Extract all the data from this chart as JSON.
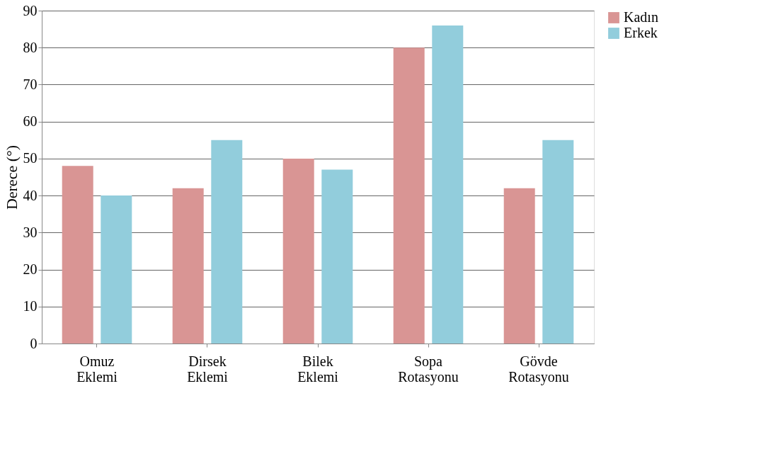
{
  "chart_data": {
    "type": "bar",
    "ylabel": "Derece (°)",
    "categories": [
      "Omuz Eklemi",
      "Dirsek Eklemi",
      "Bilek Eklemi",
      "Sopa Rotasyonu",
      "Gövde Rotasyonu"
    ],
    "series": [
      {
        "name": "Kadın",
        "color": "#d99594",
        "values": [
          48,
          42,
          50,
          80,
          42
        ]
      },
      {
        "name": "Erkek",
        "color": "#92cddc",
        "values": [
          40,
          55,
          47,
          86,
          55
        ]
      }
    ],
    "ylim": [
      0,
      90
    ],
    "yticks": [
      0,
      10,
      20,
      30,
      40,
      50,
      60,
      70,
      80,
      90
    ],
    "grid": "y",
    "legend": "right"
  }
}
